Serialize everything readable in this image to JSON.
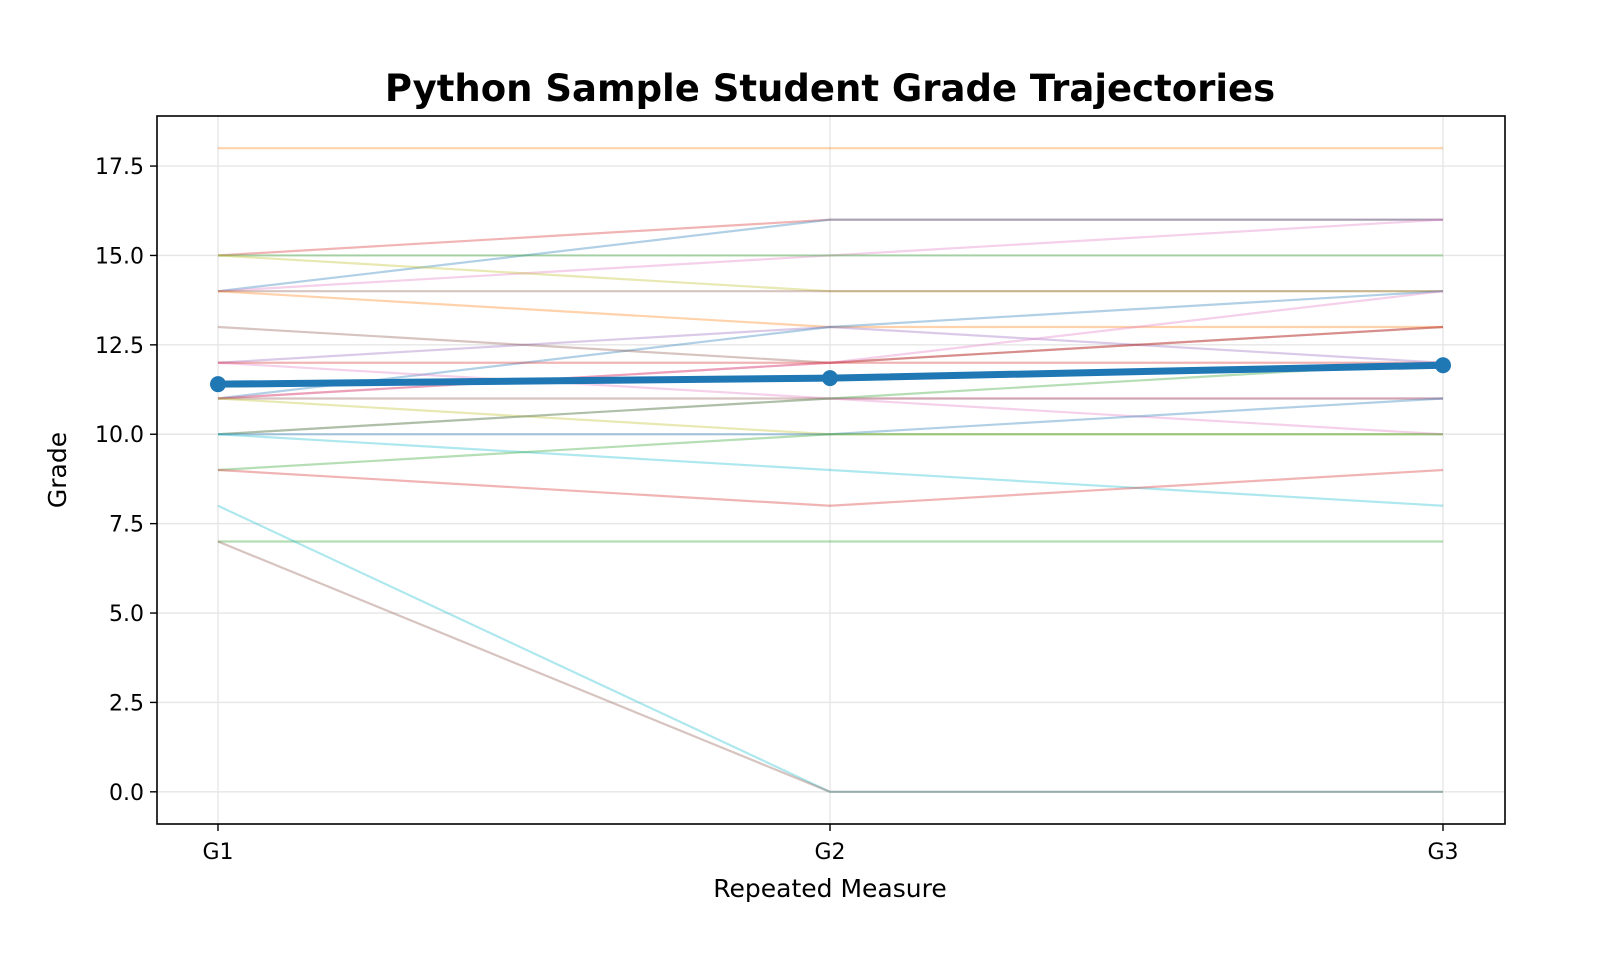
{
  "chart_data": {
    "type": "line",
    "title": "Python Sample Student Grade Trajectories",
    "xlabel": "Repeated Measure",
    "ylabel": "Grade",
    "categories": [
      "G1",
      "G2",
      "G3"
    ],
    "ylim": [
      -0.9,
      18.9
    ],
    "yticks": [
      "0.0",
      "2.5",
      "5.0",
      "7.5",
      "10.0",
      "12.5",
      "15.0",
      "17.5"
    ],
    "grid": true,
    "legend": "none",
    "mean_series": {
      "values": [
        11.4,
        11.57,
        11.93
      ],
      "color": "#1f77b4"
    },
    "series": [
      {
        "values": [
          18,
          18,
          18
        ],
        "color": "#ff7f0e"
      },
      {
        "values": [
          15,
          16,
          16
        ],
        "color": "#d62728"
      },
      {
        "values": [
          14,
          16,
          16
        ],
        "color": "#1f77b4"
      },
      {
        "values": [
          14,
          15,
          16
        ],
        "color": "#e377c2"
      },
      {
        "values": [
          15,
          15,
          15
        ],
        "color": "#2ca02c"
      },
      {
        "values": [
          15,
          14,
          14
        ],
        "color": "#bcbd22"
      },
      {
        "values": [
          14,
          14,
          14
        ],
        "color": "#8c564b"
      },
      {
        "values": [
          14,
          13,
          13
        ],
        "color": "#ff7f0e"
      },
      {
        "values": [
          12,
          13,
          12
        ],
        "color": "#9467bd"
      },
      {
        "values": [
          11,
          13,
          14
        ],
        "color": "#1f77b4"
      },
      {
        "values": [
          13,
          12,
          13
        ],
        "color": "#8c564b"
      },
      {
        "values": [
          11,
          12,
          13
        ],
        "color": "#d62728"
      },
      {
        "values": [
          11,
          12,
          14
        ],
        "color": "#e377c2"
      },
      {
        "values": [
          12,
          11,
          11
        ],
        "color": "#e377c2"
      },
      {
        "values": [
          12,
          12,
          12
        ],
        "color": "#d62728"
      },
      {
        "values": [
          11,
          11,
          11
        ],
        "color": "#8c564b"
      },
      {
        "values": [
          11,
          10,
          10
        ],
        "color": "#bcbd22"
      },
      {
        "values": [
          10,
          11,
          10
        ],
        "color": "#e377c2"
      },
      {
        "values": [
          10,
          11,
          12
        ],
        "color": "#2ca02c"
      },
      {
        "values": [
          10,
          10,
          11
        ],
        "color": "#1f77b4"
      },
      {
        "values": [
          10,
          9,
          8
        ],
        "color": "#17becf"
      },
      {
        "values": [
          9,
          10,
          10
        ],
        "color": "#2ca02c"
      },
      {
        "values": [
          9,
          8,
          9
        ],
        "color": "#d62728"
      },
      {
        "values": [
          7,
          7,
          7
        ],
        "color": "#2ca02c"
      },
      {
        "values": [
          8,
          0,
          0
        ],
        "color": "#17becf"
      },
      {
        "values": [
          7,
          0,
          0
        ],
        "color": "#8c564b"
      }
    ]
  }
}
